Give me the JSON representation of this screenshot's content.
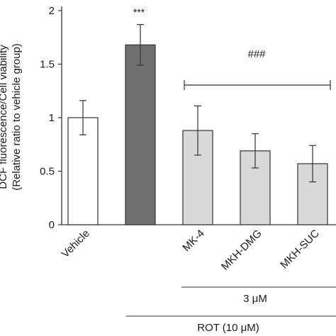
{
  "chart_data": {
    "type": "bar",
    "ylabel_line1": "DCF fluorescence/Cell viability",
    "ylabel_line2": "(Relative ratio to vehicle group)",
    "ylim": [
      0,
      2
    ],
    "yticks": [
      0,
      0.5,
      1,
      1.5,
      2
    ],
    "ytick_labels": [
      "0",
      "0.5",
      "1",
      "1.5",
      "2"
    ],
    "grid": false,
    "categories": [
      "Vehicle",
      "",
      "MK-4",
      "MKH-DMG",
      "MKH-SUC"
    ],
    "values": [
      1.0,
      1.68,
      0.88,
      0.69,
      0.57
    ],
    "errors": [
      0.16,
      0.19,
      0.23,
      0.16,
      0.17
    ],
    "bar_colors": [
      "#ffffff",
      "#707070",
      "#d9d9d9",
      "#d9d9d9",
      "#d9d9d9"
    ],
    "annotations": {
      "star_label": "***",
      "hash_label": "###",
      "conc_label": "3 μM",
      "rot_label": "ROT (10 μM)"
    }
  }
}
